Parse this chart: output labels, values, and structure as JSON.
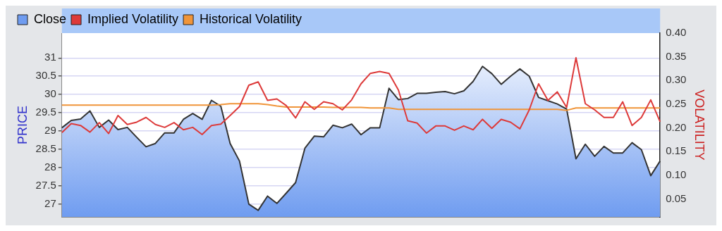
{
  "chart_data": {
    "type": "line",
    "xlabel": null,
    "ylabel": "PRICE",
    "y2label": "VOLATILITY",
    "categories": [
      null,
      null,
      null,
      null,
      null,
      null,
      null,
      null,
      null,
      null,
      null,
      null,
      null,
      null,
      null,
      null,
      null,
      null,
      null,
      null,
      null,
      null,
      null,
      null,
      null,
      null,
      null,
      null,
      null,
      null,
      null,
      null,
      null,
      null,
      null,
      null,
      null,
      null,
      null,
      null,
      null,
      null,
      null,
      null,
      null,
      null,
      null,
      null,
      null,
      null,
      null,
      null,
      null,
      null,
      null,
      null,
      null,
      null,
      null,
      null,
      null,
      null,
      null,
      null,
      null
    ],
    "series": [
      {
        "name": "Close",
        "type": "area",
        "color": "#6f9cf0",
        "values": [
          29.09,
          29.29,
          29.33,
          29.55,
          29.1,
          29.3,
          29.04,
          29.1,
          28.83,
          28.57,
          28.66,
          28.95,
          28.95,
          29.32,
          29.48,
          29.32,
          29.84,
          29.68,
          28.66,
          28.18,
          27.0,
          26.83,
          27.22,
          27.02,
          27.3,
          27.59,
          28.53,
          28.86,
          28.84,
          29.16,
          29.09,
          29.19,
          28.9,
          29.09,
          29.09,
          30.17,
          29.86,
          29.89,
          30.03,
          30.03,
          30.06,
          30.08,
          30.02,
          30.1,
          30.36,
          30.77,
          30.57,
          30.28,
          30.5,
          30.7,
          30.5,
          29.92,
          29.83,
          29.74,
          29.6,
          28.24,
          28.64,
          28.31,
          28.58,
          28.4,
          28.4,
          28.68,
          28.49,
          27.78,
          28.18
        ]
      },
      {
        "name": "Implied Volatility",
        "type": "line",
        "axis": "y2",
        "color": "#dd3a3a",
        "values": [
          0.19,
          0.209,
          0.205,
          0.191,
          0.211,
          0.188,
          0.226,
          0.207,
          0.212,
          0.222,
          0.207,
          0.201,
          0.211,
          0.196,
          0.201,
          0.186,
          0.205,
          0.208,
          0.226,
          0.245,
          0.29,
          0.297,
          0.258,
          0.261,
          0.247,
          0.221,
          0.255,
          0.239,
          0.255,
          0.251,
          0.238,
          0.259,
          0.293,
          0.315,
          0.319,
          0.315,
          0.28,
          0.215,
          0.21,
          0.189,
          0.204,
          0.204,
          0.195,
          0.204,
          0.196,
          0.218,
          0.199,
          0.218,
          0.212,
          0.198,
          0.238,
          0.293,
          0.258,
          0.276,
          0.243,
          0.348,
          0.251,
          0.238,
          0.222,
          0.222,
          0.255,
          0.205,
          0.222,
          0.259,
          0.213
        ]
      },
      {
        "name": "Historical Volatility",
        "type": "line",
        "axis": "y2",
        "color": "#f0953a",
        "values": [
          0.248,
          0.248,
          0.248,
          0.248,
          0.248,
          0.248,
          0.248,
          0.248,
          0.248,
          0.248,
          0.248,
          0.248,
          0.248,
          0.248,
          0.248,
          0.248,
          0.248,
          0.249,
          0.251,
          0.251,
          0.251,
          0.251,
          0.249,
          0.246,
          0.244,
          0.244,
          0.244,
          0.244,
          0.244,
          0.243,
          0.243,
          0.243,
          0.243,
          0.242,
          0.242,
          0.242,
          0.239,
          0.239,
          0.239,
          0.239,
          0.239,
          0.239,
          0.239,
          0.239,
          0.239,
          0.239,
          0.239,
          0.239,
          0.239,
          0.239,
          0.239,
          0.239,
          0.239,
          0.239,
          0.237,
          0.242,
          0.242,
          0.242,
          0.242,
          0.242,
          0.242,
          0.242,
          0.242,
          0.242,
          0.242
        ]
      }
    ],
    "ylim": [
      26.65,
      31.68
    ],
    "yticks": [
      27,
      27.5,
      28,
      28.5,
      29,
      29.5,
      30,
      30.5,
      31
    ],
    "y2lim": [
      0.012,
      0.4
    ],
    "y2ticks": [
      {
        "value": 0.05,
        "label": "0.05"
      },
      {
        "value": 0.1,
        "label": "0.10"
      },
      {
        "value": 0.15,
        "label": "0.15"
      },
      {
        "value": 0.2,
        "label": "0.20"
      },
      {
        "value": 0.25,
        "label": "0.25"
      },
      {
        "value": 0.3,
        "label": "0.30"
      },
      {
        "value": 0.35,
        "label": "0.35"
      },
      {
        "value": 0.4,
        "label": "0.40"
      }
    ],
    "grid": "y",
    "legend": "top left",
    "tick_labels": "y",
    "marker": "none",
    "line_style": "solid"
  }
}
